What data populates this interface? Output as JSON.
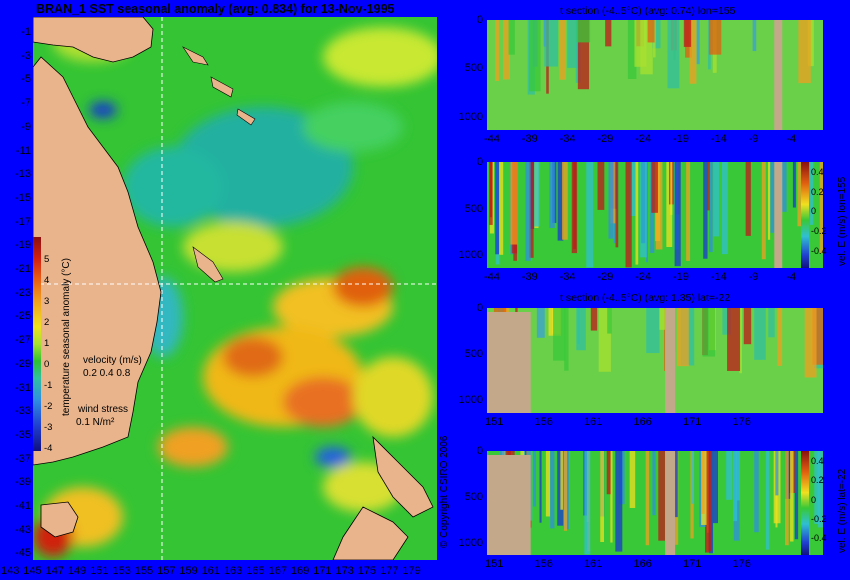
{
  "map": {
    "title": "BRAN_1 SST seasonal anomaly (avg: 0.834) for 13-Nov-1995",
    "lat_ticks": [
      "-1",
      "-3",
      "-5",
      "-7",
      "-9",
      "-11",
      "-13",
      "-15",
      "-17",
      "-19",
      "-21",
      "-23",
      "-25",
      "-27",
      "-29",
      "-31",
      "-33",
      "-35",
      "-37",
      "-39",
      "-41",
      "-43",
      "-45"
    ],
    "lon_ticks": [
      "143",
      "145",
      "147",
      "149",
      "151",
      "153",
      "155",
      "157",
      "159",
      "161",
      "163",
      "165",
      "167",
      "169",
      "171",
      "173",
      "175",
      "177",
      "179"
    ],
    "colorbar_ticks": [
      "5",
      "4",
      "3",
      "2",
      "1",
      "0",
      "-1",
      "-2",
      "-3",
      "-4"
    ],
    "colorbar_label": "temperature seasonal anomaly (°C)",
    "velocity_label": "velocity (m/s)",
    "velocity_scale": "0.2 0.4 0.8",
    "wind_label": "wind stress",
    "wind_scale": "0.1 N/m²",
    "copyright": "© Copyright CSIRO 2006",
    "crosshair": {
      "lon": 155,
      "lat": -22
    }
  },
  "panels": [
    {
      "title": "t section (-4..5°C) (avg: 0.74) lon=155",
      "x_ticks": [
        "-44",
        "-39",
        "-34",
        "-29",
        "-24",
        "-19",
        "-14",
        "-9",
        "-4"
      ],
      "y_ticks": [
        "0",
        "500",
        "1000"
      ]
    },
    {
      "title": "",
      "x_ticks": [
        "-44",
        "-39",
        "-34",
        "-29",
        "-24",
        "-19",
        "-14",
        "-9",
        "-4"
      ],
      "y_ticks": [
        "0",
        "500",
        "1000"
      ],
      "cb_label": "vel. E (m/s) lon=155",
      "cb_ticks": [
        "0.4",
        "0.2",
        "0",
        "-0.2",
        "-0.4"
      ]
    },
    {
      "title": "t section (-4..5°C) (avg: 1.35) lat=-22",
      "x_ticks": [
        "151",
        "156",
        "161",
        "166",
        "171",
        "176"
      ],
      "y_ticks": [
        "0",
        "500",
        "1000"
      ]
    },
    {
      "title": "",
      "x_ticks": [
        "151",
        "156",
        "161",
        "166",
        "171",
        "176"
      ],
      "y_ticks": [
        "0",
        "500",
        "1000"
      ],
      "cb_label": "vel. E (m/s) lat=-22",
      "cb_ticks": [
        "0.4",
        "0.2",
        "0",
        "-0.2",
        "-0.4"
      ]
    }
  ],
  "colors": {
    "background": "#0000ff",
    "land": "#e9b48c",
    "seafloor": "#c4a88a",
    "ocean_base": "#2ec82e",
    "crosshair": "#ffffff"
  }
}
